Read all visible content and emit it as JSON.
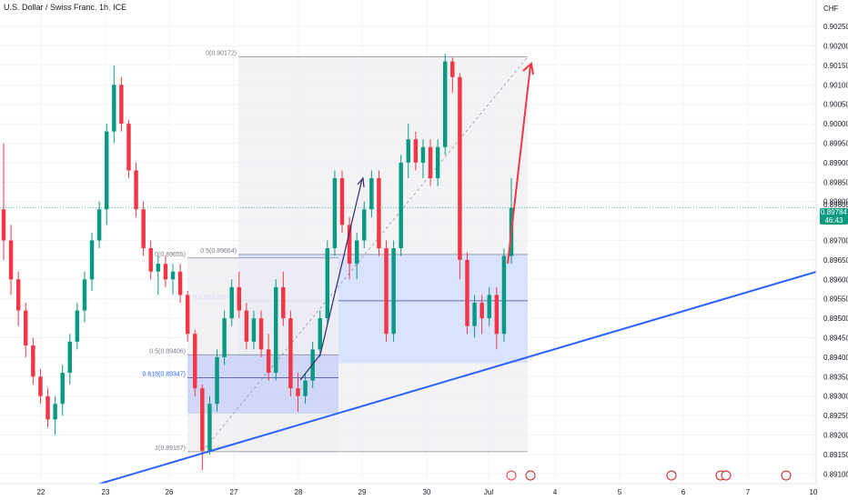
{
  "header": {
    "symbol": "U.S. Dollar / Swiss Franc",
    "interval": "1h",
    "exchange": "ICE"
  },
  "price_axis": {
    "currency": "CHF",
    "last_price": "0.89784",
    "countdown": "46:43",
    "hidden_tick": "0.89800"
  },
  "colors": {
    "up": "#089981",
    "down": "#f23645",
    "trendline": "#2962ff",
    "fib_fill": "#d6e0ff",
    "box_fill": "#aab8fb",
    "arrow_red": "#f23645",
    "arrow_dark": "#2e2a6b",
    "grid": "#f0f3fa"
  },
  "chart_data": {
    "type": "candlestick",
    "title": "U.S. Dollar / Swiss Franc, 1h, ICE",
    "y_unit": "CHF",
    "ylim": [
      0.89075,
      0.9029
    ],
    "y_ticks": [
      "0.90250",
      "0.90200",
      "0.90150",
      "0.90100",
      "0.90050",
      "0.90000",
      "0.89950",
      "0.89900",
      "0.89850",
      "0.89800",
      "0.89750",
      "0.89700",
      "0.89650",
      "0.89600",
      "0.89550",
      "0.89500",
      "0.89450",
      "0.89400",
      "0.89350",
      "0.89300",
      "0.89250",
      "0.89200",
      "0.89150",
      "0.89100"
    ],
    "x_ticks": [
      "22",
      "23",
      "26",
      "27",
      "28",
      "29",
      "30",
      "Jul",
      "4",
      "5",
      "6",
      "7",
      "10"
    ],
    "candles": [
      {
        "o": 0.8978,
        "h": 0.8995,
        "l": 0.8965,
        "c": 0.897
      },
      {
        "o": 0.897,
        "h": 0.8974,
        "l": 0.8956,
        "c": 0.896
      },
      {
        "o": 0.896,
        "h": 0.8962,
        "l": 0.8948,
        "c": 0.8952
      },
      {
        "o": 0.8952,
        "h": 0.8954,
        "l": 0.894,
        "c": 0.8943
      },
      {
        "o": 0.8943,
        "h": 0.8945,
        "l": 0.8933,
        "c": 0.8935
      },
      {
        "o": 0.8935,
        "h": 0.8937,
        "l": 0.8928,
        "c": 0.893
      },
      {
        "o": 0.893,
        "h": 0.8932,
        "l": 0.8922,
        "c": 0.8924
      },
      {
        "o": 0.8924,
        "h": 0.893,
        "l": 0.892,
        "c": 0.8928
      },
      {
        "o": 0.8928,
        "h": 0.8938,
        "l": 0.8925,
        "c": 0.8936
      },
      {
        "o": 0.8936,
        "h": 0.8946,
        "l": 0.8933,
        "c": 0.8944
      },
      {
        "o": 0.8944,
        "h": 0.8954,
        "l": 0.8942,
        "c": 0.8952
      },
      {
        "o": 0.8952,
        "h": 0.8962,
        "l": 0.8949,
        "c": 0.896
      },
      {
        "o": 0.896,
        "h": 0.8972,
        "l": 0.8957,
        "c": 0.897
      },
      {
        "o": 0.897,
        "h": 0.898,
        "l": 0.8968,
        "c": 0.8978
      },
      {
        "o": 0.8978,
        "h": 0.9,
        "l": 0.8974,
        "c": 0.8998
      },
      {
        "o": 0.8998,
        "h": 0.9015,
        "l": 0.8995,
        "c": 0.901
      },
      {
        "o": 0.901,
        "h": 0.9012,
        "l": 0.8998,
        "c": 0.9
      },
      {
        "o": 0.9,
        "h": 0.9001,
        "l": 0.8986,
        "c": 0.8988
      },
      {
        "o": 0.8988,
        "h": 0.899,
        "l": 0.8976,
        "c": 0.8978
      },
      {
        "o": 0.8978,
        "h": 0.898,
        "l": 0.8966,
        "c": 0.8968
      },
      {
        "o": 0.8968,
        "h": 0.897,
        "l": 0.896,
        "c": 0.8962
      },
      {
        "o": 0.8962,
        "h": 0.8966,
        "l": 0.8956,
        "c": 0.8964
      },
      {
        "o": 0.8964,
        "h": 0.8966,
        "l": 0.8958,
        "c": 0.896
      },
      {
        "o": 0.896,
        "h": 0.8964,
        "l": 0.8956,
        "c": 0.8962
      },
      {
        "o": 0.8962,
        "h": 0.8964,
        "l": 0.8954,
        "c": 0.8956
      },
      {
        "o": 0.8956,
        "h": 0.8957,
        "l": 0.8944,
        "c": 0.8946
      },
      {
        "o": 0.8946,
        "h": 0.8947,
        "l": 0.893,
        "c": 0.8932
      },
      {
        "o": 0.8932,
        "h": 0.8933,
        "l": 0.8911,
        "c": 0.8916
      },
      {
        "o": 0.8916,
        "h": 0.893,
        "l": 0.8915,
        "c": 0.8928
      },
      {
        "o": 0.8928,
        "h": 0.8942,
        "l": 0.8926,
        "c": 0.894
      },
      {
        "o": 0.894,
        "h": 0.8952,
        "l": 0.8938,
        "c": 0.895
      },
      {
        "o": 0.895,
        "h": 0.896,
        "l": 0.8948,
        "c": 0.8958
      },
      {
        "o": 0.8958,
        "h": 0.8962,
        "l": 0.895,
        "c": 0.8952
      },
      {
        "o": 0.8952,
        "h": 0.8954,
        "l": 0.8942,
        "c": 0.8944
      },
      {
        "o": 0.8944,
        "h": 0.8952,
        "l": 0.8942,
        "c": 0.895
      },
      {
        "o": 0.895,
        "h": 0.8952,
        "l": 0.894,
        "c": 0.8942
      },
      {
        "o": 0.8942,
        "h": 0.8946,
        "l": 0.8934,
        "c": 0.8936
      },
      {
        "o": 0.8936,
        "h": 0.896,
        "l": 0.8934,
        "c": 0.8958
      },
      {
        "o": 0.8958,
        "h": 0.8962,
        "l": 0.8948,
        "c": 0.895
      },
      {
        "o": 0.895,
        "h": 0.8952,
        "l": 0.893,
        "c": 0.8932
      },
      {
        "o": 0.8932,
        "h": 0.8936,
        "l": 0.8926,
        "c": 0.893
      },
      {
        "o": 0.893,
        "h": 0.8936,
        "l": 0.8928,
        "c": 0.8934
      },
      {
        "o": 0.8934,
        "h": 0.8944,
        "l": 0.8932,
        "c": 0.8942
      },
      {
        "o": 0.8942,
        "h": 0.8952,
        "l": 0.894,
        "c": 0.895
      },
      {
        "o": 0.895,
        "h": 0.897,
        "l": 0.8948,
        "c": 0.8968
      },
      {
        "o": 0.8968,
        "h": 0.8988,
        "l": 0.8966,
        "c": 0.8986
      },
      {
        "o": 0.8986,
        "h": 0.8988,
        "l": 0.8972,
        "c": 0.8974
      },
      {
        "o": 0.8974,
        "h": 0.8976,
        "l": 0.896,
        "c": 0.8964
      },
      {
        "o": 0.8964,
        "h": 0.8972,
        "l": 0.896,
        "c": 0.897
      },
      {
        "o": 0.897,
        "h": 0.898,
        "l": 0.8968,
        "c": 0.8978
      },
      {
        "o": 0.8978,
        "h": 0.8988,
        "l": 0.8976,
        "c": 0.8986
      },
      {
        "o": 0.8986,
        "h": 0.8988,
        "l": 0.8966,
        "c": 0.8968
      },
      {
        "o": 0.8968,
        "h": 0.897,
        "l": 0.8944,
        "c": 0.8946
      },
      {
        "o": 0.8946,
        "h": 0.897,
        "l": 0.8944,
        "c": 0.8968
      },
      {
        "o": 0.8968,
        "h": 0.8992,
        "l": 0.8966,
        "c": 0.899
      },
      {
        "o": 0.899,
        "h": 0.9,
        "l": 0.8986,
        "c": 0.8996
      },
      {
        "o": 0.8996,
        "h": 0.8998,
        "l": 0.8988,
        "c": 0.899
      },
      {
        "o": 0.899,
        "h": 0.8996,
        "l": 0.8986,
        "c": 0.8994
      },
      {
        "o": 0.8994,
        "h": 0.8996,
        "l": 0.8984,
        "c": 0.8986
      },
      {
        "o": 0.8986,
        "h": 0.8996,
        "l": 0.8984,
        "c": 0.8994
      },
      {
        "o": 0.8994,
        "h": 0.9018,
        "l": 0.8992,
        "c": 0.9016
      },
      {
        "o": 0.9016,
        "h": 0.9017,
        "l": 0.9008,
        "c": 0.9012
      },
      {
        "o": 0.9012,
        "h": 0.9013,
        "l": 0.896,
        "c": 0.8965
      },
      {
        "o": 0.8965,
        "h": 0.8967,
        "l": 0.8946,
        "c": 0.8948
      },
      {
        "o": 0.8948,
        "h": 0.8956,
        "l": 0.8945,
        "c": 0.8954
      },
      {
        "o": 0.8954,
        "h": 0.8956,
        "l": 0.8946,
        "c": 0.895
      },
      {
        "o": 0.895,
        "h": 0.8958,
        "l": 0.8948,
        "c": 0.8956
      },
      {
        "o": 0.8956,
        "h": 0.8958,
        "l": 0.8942,
        "c": 0.8946
      },
      {
        "o": 0.8946,
        "h": 0.8968,
        "l": 0.8944,
        "c": 0.8966
      },
      {
        "o": 0.8966,
        "h": 0.8986,
        "l": 0.8964,
        "c": 0.89784
      }
    ],
    "fib_retracement_1": {
      "levels": [
        {
          "ratio": "0",
          "price": 0.90172,
          "label": "0(0.90172)"
        },
        {
          "ratio": "0.5",
          "price": 0.89664,
          "label": "0.5(0.89664)"
        },
        {
          "ratio": "0.618",
          "price": 0.89545,
          "label": "0.618(0.89545)"
        },
        {
          "ratio": "1",
          "price": 0.89157,
          "label": "1(0.89157)"
        }
      ]
    },
    "fib_retracement_2": {
      "levels": [
        {
          "ratio": "0",
          "price": 0.89655,
          "label": "0(0.89655)"
        },
        {
          "ratio": "0.5",
          "price": 0.89406,
          "label": "0.5(0.89406)"
        },
        {
          "ratio": "0.618",
          "price": 0.89347,
          "label": "0.618(0.89347)"
        },
        {
          "ratio": "1",
          "price": 0.89157,
          "label": "1(0.89157)"
        }
      ]
    },
    "trendline": {
      "from_price": 0.8908,
      "to_price": 0.8962
    },
    "grid": true
  }
}
